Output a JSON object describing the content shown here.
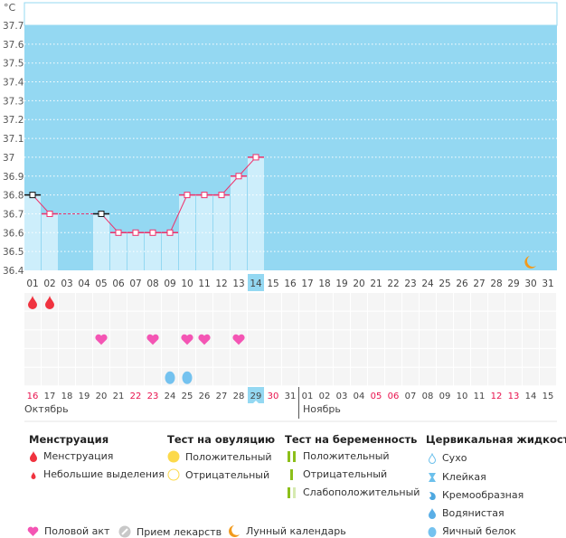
{
  "chart_data": {
    "type": "line",
    "unit": "°C",
    "ylim": [
      36.4,
      37.7
    ],
    "y_ticks": [
      "36.4",
      "36.5",
      "36.6",
      "36.7",
      "36.8",
      "36.9",
      "37",
      "37.1",
      "37.2",
      "37.3",
      "37.4",
      "37.5",
      "37.6",
      "37.7"
    ],
    "cycle_days": [
      "01",
      "02",
      "03",
      "04",
      "05",
      "06",
      "07",
      "08",
      "09",
      "10",
      "11",
      "12",
      "13",
      "14",
      "15",
      "16",
      "17",
      "18",
      "19",
      "20",
      "21",
      "22",
      "23",
      "24",
      "25",
      "26",
      "27",
      "28",
      "29",
      "30",
      "31"
    ],
    "current_cycle_day": "14",
    "temperatures": [
      {
        "day": "01",
        "value": 36.8,
        "excluded": true
      },
      {
        "day": "02",
        "value": 36.7
      },
      {
        "day": "05",
        "value": 36.7,
        "excluded": true
      },
      {
        "day": "06",
        "value": 36.6
      },
      {
        "day": "07",
        "value": 36.6
      },
      {
        "day": "08",
        "value": 36.6
      },
      {
        "day": "09",
        "value": 36.6
      },
      {
        "day": "10",
        "value": 36.8
      },
      {
        "day": "11",
        "value": 36.8
      },
      {
        "day": "12",
        "value": 36.8
      },
      {
        "day": "13",
        "value": 36.9
      },
      {
        "day": "14",
        "value": 37.0
      }
    ],
    "grid": true,
    "moon_day": "30"
  },
  "calendar": {
    "dates": [
      "16",
      "17",
      "18",
      "19",
      "20",
      "21",
      "22",
      "23",
      "24",
      "25",
      "26",
      "27",
      "28",
      "29",
      "30",
      "31",
      "01",
      "02",
      "03",
      "04",
      "05",
      "06",
      "07",
      "08",
      "09",
      "10",
      "11",
      "12",
      "13",
      "14",
      "15"
    ],
    "weekend_dates_idx": [
      0,
      6,
      7,
      14,
      20,
      21,
      27,
      28
    ],
    "today_idx": 13,
    "months": [
      "Октябрь",
      "Ноябрь"
    ],
    "menstruation_days_idx": [
      0,
      1
    ],
    "intercourse_days_idx": [
      4,
      7,
      9,
      10,
      12
    ],
    "egg_white_days_idx": [
      8,
      9
    ]
  },
  "colors": {
    "plot_bg": "#94d8f2",
    "bar": "#cdeefb",
    "line": "#f0306a",
    "weekend": "#e8124d",
    "today": "#94d8f2"
  },
  "legend": {
    "menstruation": {
      "title": "Менструация",
      "items": [
        "Менструация",
        "Небольшие выделения"
      ]
    },
    "ovulation": {
      "title": "Тест на овуляцию",
      "items": [
        "Положительный",
        "Отрицательный"
      ]
    },
    "pregnancy": {
      "title": "Тест на беременность",
      "items": [
        "Положительный",
        "Отрицательный",
        "Слабоположительный"
      ]
    },
    "cervical": {
      "title": "Цервикальная жидкость",
      "items": [
        "Сухо",
        "Клейкая",
        "Кремообразная",
        "Водянистая",
        "Яичный белок"
      ]
    },
    "other": [
      "Половой акт",
      "Прием лекарств",
      "Лунный календарь"
    ]
  }
}
